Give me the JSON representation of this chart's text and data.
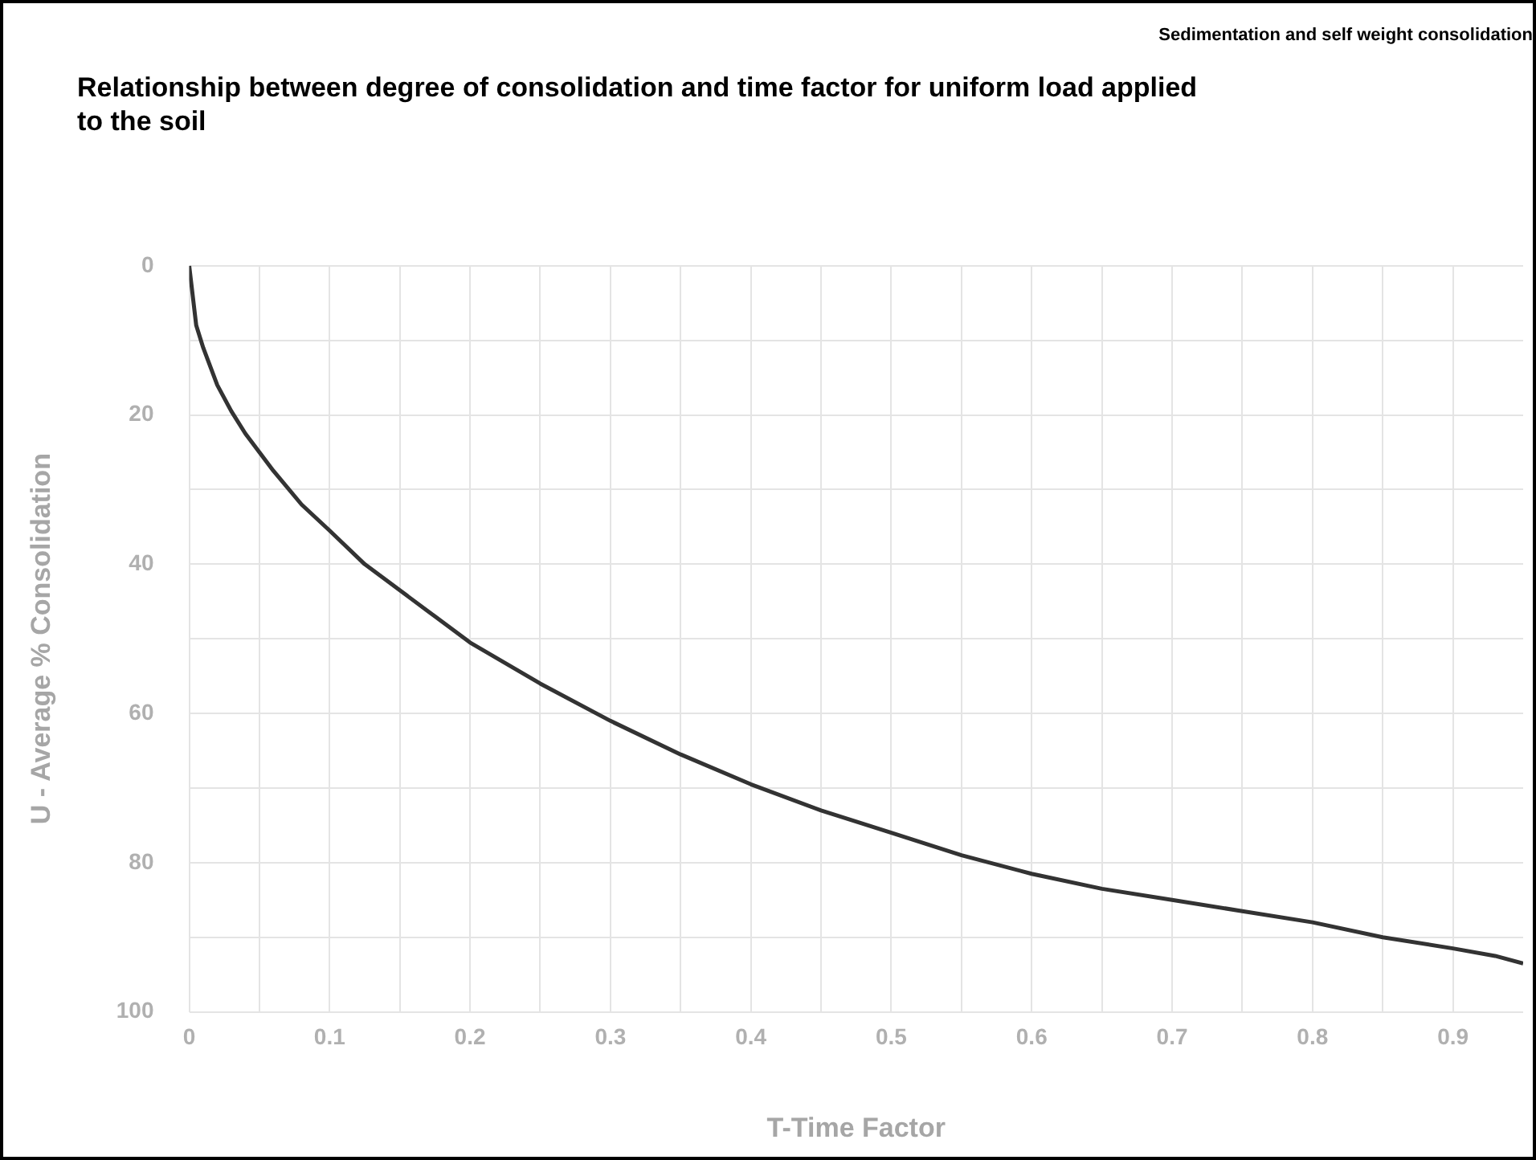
{
  "chart_data": {
    "type": "line",
    "title": "Relationship between degree of consolidation and time factor for uniform load applied to the soil",
    "annotations": [
      "Sedimentation and self weight consolidation"
    ],
    "xlabel": "T-Time Factor",
    "ylabel": "U - Average % Consolidation",
    "x": [
      0,
      0.005,
      0.01,
      0.02,
      0.03,
      0.04,
      0.05,
      0.06,
      0.08,
      0.1,
      0.125,
      0.15,
      0.175,
      0.2,
      0.25,
      0.3,
      0.35,
      0.4,
      0.45,
      0.5,
      0.55,
      0.6,
      0.65,
      0.7,
      0.75,
      0.8,
      0.85,
      0.9,
      0.93,
      0.95
    ],
    "series": [
      {
        "color": "#333333",
        "values": [
          0,
          8,
          11,
          16,
          19.5,
          22.5,
          25,
          27.5,
          32,
          35.5,
          40,
          43.5,
          47,
          50.5,
          56,
          61,
          65.5,
          69.5,
          73,
          76,
          79,
          81.5,
          83.5,
          85,
          86.5,
          88,
          90,
          91.5,
          92.5,
          93.5
        ]
      }
    ],
    "xlim": [
      0,
      0.95
    ],
    "ylim": [
      100,
      0
    ],
    "xticks": [
      0,
      {
        "value": 0.05,
        "label": null
      },
      0.1,
      {
        "value": 0.15,
        "label": null
      },
      0.2,
      {
        "value": 0.25,
        "label": null
      },
      0.3,
      {
        "value": 0.35,
        "label": null
      },
      0.4,
      {
        "value": 0.45,
        "label": null
      },
      0.5,
      {
        "value": 0.55,
        "label": null
      },
      0.6,
      {
        "value": 0.65,
        "label": null
      },
      0.7,
      {
        "value": 0.75,
        "label": null
      },
      0.8,
      {
        "value": 0.85,
        "label": null
      },
      0.9
    ],
    "yticks": [
      0,
      {
        "value": 10,
        "label": null
      },
      20,
      {
        "value": 30,
        "label": null
      },
      40,
      {
        "value": 50,
        "label": null
      },
      60,
      {
        "value": 70,
        "label": null
      },
      80,
      {
        "value": 90,
        "label": null
      },
      100
    ],
    "grid": true,
    "legend": false,
    "marker": "none",
    "line_style": "solid"
  }
}
